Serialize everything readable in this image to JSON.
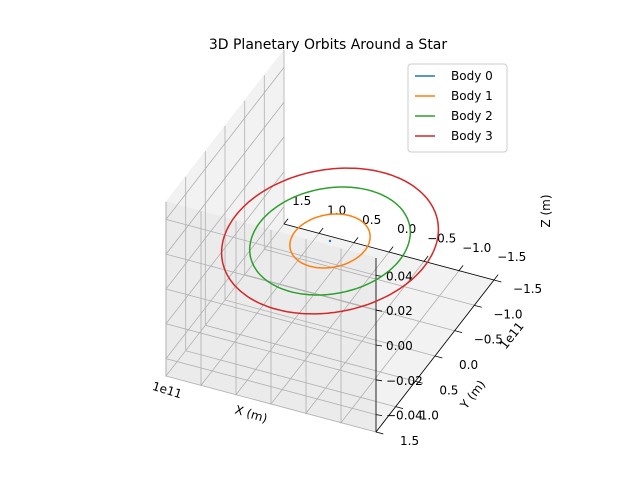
{
  "chart_data": {
    "type": "line",
    "projection": "3d",
    "title": "3D Planetary Orbits Around a Star",
    "xlabel": "X (m)",
    "ylabel": "Y (m)",
    "zlabel": "Z (m)",
    "x_offset_label": "1e11",
    "y_offset_label": "1e11",
    "xlim": [
      -150000000000.0,
      150000000000.0
    ],
    "ylim": [
      -150000000000.0,
      150000000000.0
    ],
    "zlim": [
      -0.05,
      0.05
    ],
    "x_ticks": [
      "−1.5",
      "−1.0",
      "−0.5",
      "0.0",
      "0.5",
      "1.0",
      "1.5"
    ],
    "y_ticks": [
      "−1.5",
      "−1.0",
      "−0.5",
      "0.0",
      "0.5",
      "1.0",
      "1.5"
    ],
    "z_ticks": [
      "−0.04",
      "−0.02",
      "0.00",
      "0.02",
      "0.04"
    ],
    "grid": true,
    "legend_position": "top-right",
    "series": [
      {
        "name": "Body 0",
        "color": "#1f77b4",
        "shape": "point",
        "center": [
          0,
          0,
          0
        ],
        "radius": 0
      },
      {
        "name": "Body 1",
        "color": "#ff7f0e",
        "shape": "circle",
        "center": [
          0,
          0,
          0
        ],
        "radius": 50000000000.0
      },
      {
        "name": "Body 2",
        "color": "#2ca02c",
        "shape": "circle",
        "center": [
          0,
          0,
          0
        ],
        "radius": 100000000000.0
      },
      {
        "name": "Body 3",
        "color": "#d62728",
        "shape": "circle",
        "center": [
          0,
          0,
          0
        ],
        "radius": 135000000000.0
      }
    ]
  }
}
